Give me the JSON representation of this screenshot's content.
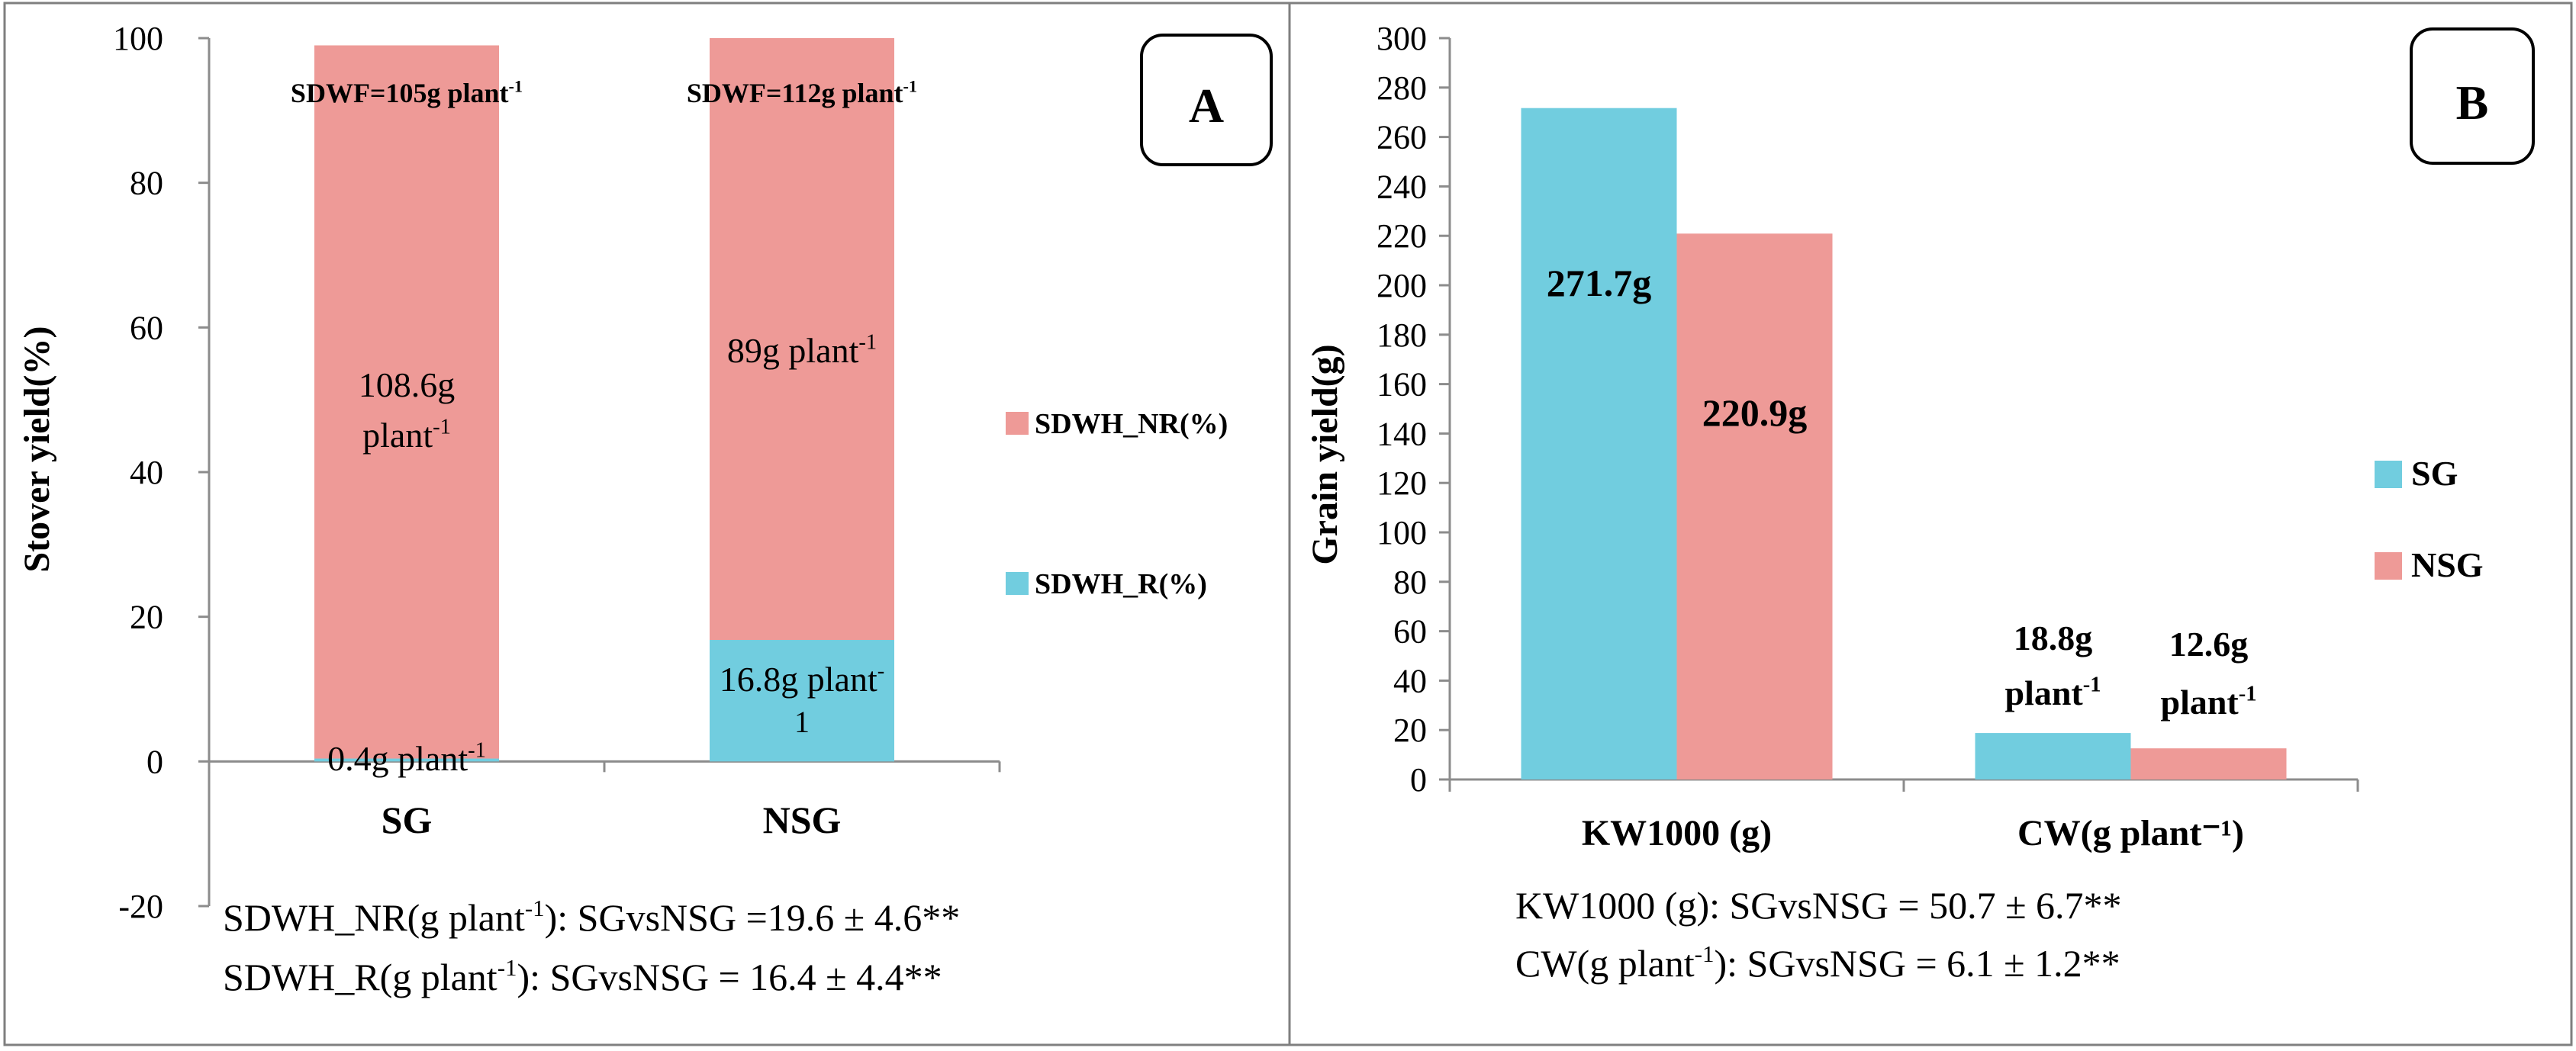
{
  "colors": {
    "sg": "#71CDDF",
    "nsg": "#EE9A97",
    "axis": "#8C8C8C",
    "frame": "#7F7F7F",
    "text": "#000000"
  },
  "chart_data": [
    {
      "type": "bar",
      "stacked": true,
      "panel_label": "A",
      "title": "",
      "xlabel": "",
      "ylabel": "Stover yield(%)",
      "ylim": [
        -20,
        100
      ],
      "yticks": [
        "100",
        "80",
        "60",
        "40",
        "20",
        "0",
        "-20"
      ],
      "categories": [
        "SG",
        "NSG"
      ],
      "series": [
        {
          "name": "SDWH_R(%)",
          "values": [
            0.4,
            16.8
          ]
        },
        {
          "name": "SDWH_NR(%)",
          "values": [
            98.6,
            83.2
          ]
        }
      ],
      "legend": [
        "SDWH_NR(%)",
        "SDWH_R(%)"
      ],
      "top_labels": [
        "SDWF=105g plant",
        "SDWF=112g plant"
      ],
      "top_label_sup": "-1",
      "nr_labels": [
        {
          "line1": "108.6g",
          "line2": "plant",
          "sup": "-1"
        },
        {
          "line1": "89g plant",
          "sup": "-1"
        }
      ],
      "r_labels": [
        {
          "line1": "0.4g plant",
          "sup": "-1"
        },
        {
          "line1": "16.8g plant",
          "sup": "-",
          "line2": "1"
        }
      ],
      "notes": [
        {
          "pre": "SDWH_NR(g plant",
          "sup": "-1",
          "post": "): SGvsNSG =19.6 ± 4.6**"
        },
        {
          "pre": "SDWH_R(g plant",
          "sup": "-1",
          "post": "): SGvsNSG = 16.4 ± 4.4**"
        }
      ]
    },
    {
      "type": "bar",
      "panel_label": "B",
      "title": "",
      "xlabel": "",
      "ylabel": "Grain yield(g)",
      "ylim": [
        0,
        300
      ],
      "yticks": [
        "300",
        "280",
        "260",
        "240",
        "220",
        "200",
        "180",
        "160",
        "140",
        "120",
        "100",
        "80",
        "60",
        "40",
        "20",
        "0"
      ],
      "categories": [
        "KW1000 (g)",
        "CW(g plant⁻¹)"
      ],
      "series": [
        {
          "name": "SG",
          "values": [
            271.7,
            18.8
          ]
        },
        {
          "name": "NSG",
          "values": [
            220.9,
            12.6
          ]
        }
      ],
      "legend": [
        "SG",
        "NSG"
      ],
      "data_labels": [
        {
          "line1": "271.7g"
        },
        {
          "line1": "220.9g"
        },
        {
          "line1": "18.8g",
          "line2": "plant",
          "sup": "-1"
        },
        {
          "line1": "12.6g",
          "line2": "plant",
          "sup": "-1"
        }
      ],
      "notes": [
        {
          "pre": "KW1000 (g): SGvsNSG = 50.7 ± 6.7**"
        },
        {
          "pre": "CW(g plant",
          "sup": "-1",
          "post": "): SGvsNSG = 6.1 ± 1.2**"
        }
      ]
    }
  ]
}
